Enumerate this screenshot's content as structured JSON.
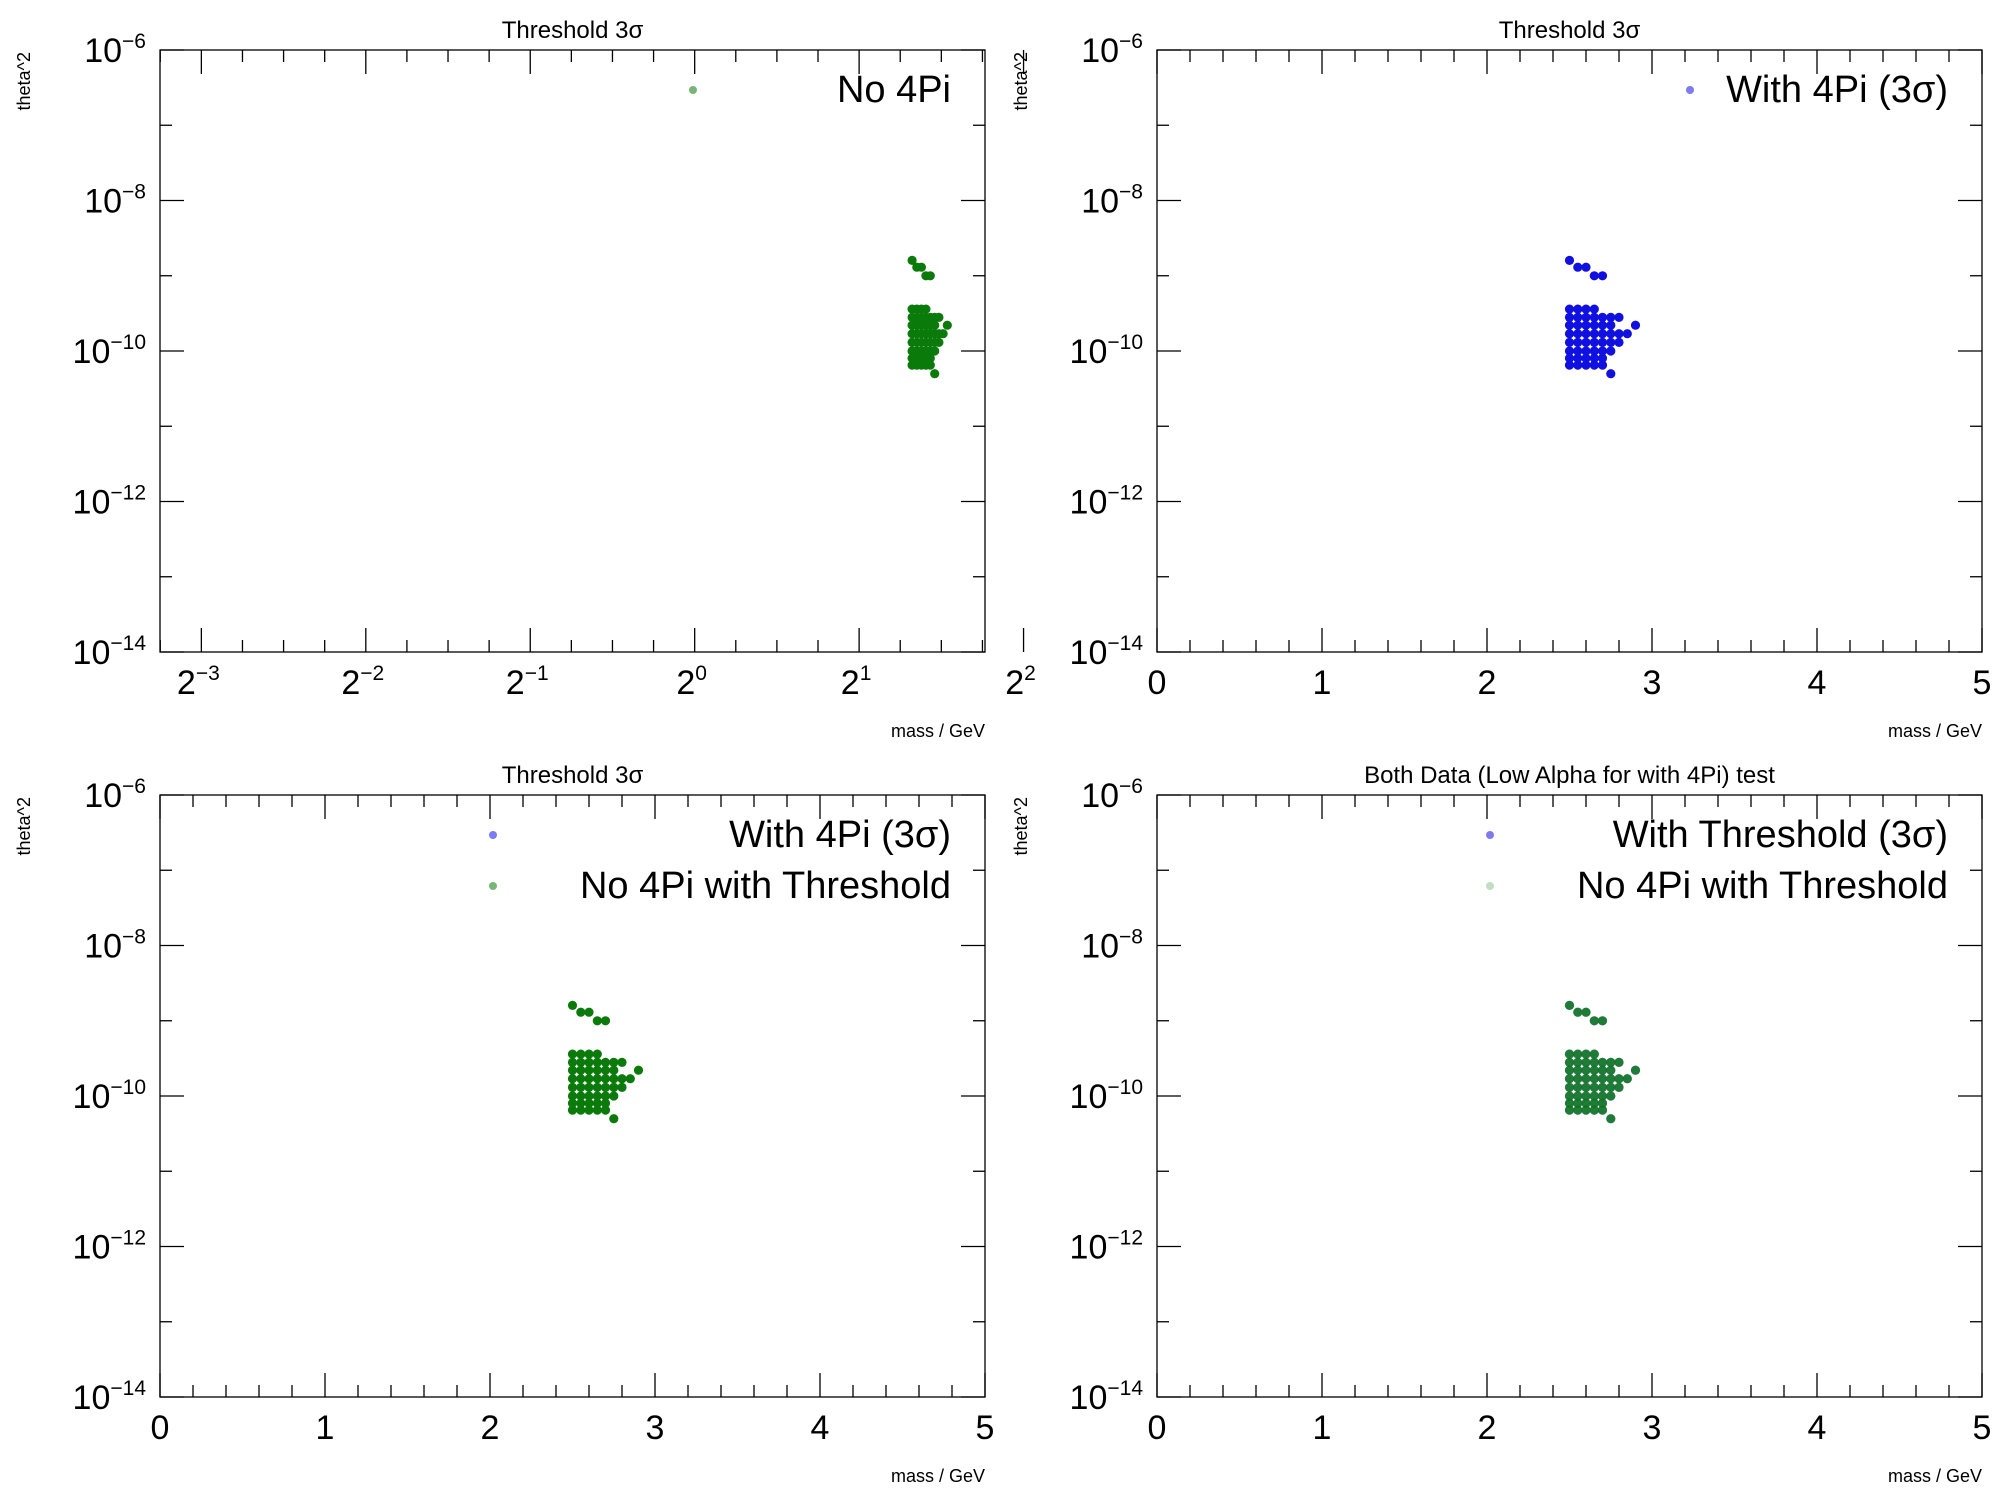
{
  "chart_data": [
    {
      "type": "scatter",
      "title": "Threshold 3σ",
      "xlabel": "mass / GeV",
      "ylabel": "theta^2",
      "xscale": "log2",
      "yscale": "log",
      "xlim": [
        0.105,
        3.4
      ],
      "ylim": [
        1e-14,
        1e-06
      ],
      "legend_position": "top-right",
      "series": [
        {
          "name": "No 4Pi",
          "color": "#0a7a0a",
          "opacity": 1.0,
          "legend_opacity": 0.55
        }
      ]
    },
    {
      "type": "scatter",
      "title": "Threshold 3σ",
      "xlabel": "mass / GeV",
      "ylabel": "theta^2",
      "xscale": "linear",
      "yscale": "log",
      "xlim": [
        0,
        5
      ],
      "ylim": [
        1e-14,
        1e-06
      ],
      "legend_position": "top-right",
      "series": [
        {
          "name": "With 4Pi (3σ)",
          "color": "#1010e0",
          "opacity": 1.0,
          "legend_opacity": 0.55
        }
      ]
    },
    {
      "type": "scatter",
      "title": "Threshold 3σ",
      "xlabel": "mass / GeV",
      "ylabel": "theta^2",
      "xscale": "linear",
      "yscale": "log",
      "xlim": [
        0,
        5
      ],
      "ylim": [
        1e-14,
        1e-06
      ],
      "legend_position": "top-right",
      "series": [
        {
          "name": "With 4Pi (3σ)",
          "color": "#1010e0",
          "opacity": 0.0,
          "legend_opacity": 0.55
        },
        {
          "name": "No 4Pi with Threshold",
          "color": "#0a7a0a",
          "opacity": 1.0,
          "legend_opacity": 0.55
        }
      ]
    },
    {
      "type": "scatter",
      "title": "Both Data (Low Alpha for with 4Pi) test",
      "xlabel": "mass / GeV",
      "ylabel": "theta^2",
      "xscale": "linear",
      "yscale": "log",
      "xlim": [
        0,
        5
      ],
      "ylim": [
        1e-14,
        1e-06
      ],
      "legend_position": "top-right",
      "series": [
        {
          "name": "With Threshold (3σ)",
          "color": "#1010e0",
          "opacity": 0.55,
          "legend_opacity": 0.55
        },
        {
          "name": "No 4Pi with Threshold",
          "color": "#0a7a0a",
          "opacity": 0.8,
          "legend_opacity": 0.25
        }
      ]
    }
  ],
  "shared_points": [
    [
      2.5,
      1.6e-09
    ],
    [
      2.55,
      1.3e-09
    ],
    [
      2.6,
      1.3e-09
    ],
    [
      2.65,
      1e-09
    ],
    [
      2.7,
      1e-09
    ],
    [
      2.5,
      3.6e-10
    ],
    [
      2.55,
      3.6e-10
    ],
    [
      2.6,
      3.6e-10
    ],
    [
      2.65,
      3.6e-10
    ],
    [
      2.5,
      2.8e-10
    ],
    [
      2.55,
      2.8e-10
    ],
    [
      2.6,
      2.8e-10
    ],
    [
      2.65,
      2.8e-10
    ],
    [
      2.7,
      2.8e-10
    ],
    [
      2.75,
      2.8e-10
    ],
    [
      2.8,
      2.8e-10
    ],
    [
      2.5,
      2.2e-10
    ],
    [
      2.55,
      2.2e-10
    ],
    [
      2.6,
      2.2e-10
    ],
    [
      2.65,
      2.2e-10
    ],
    [
      2.7,
      2.2e-10
    ],
    [
      2.75,
      2.2e-10
    ],
    [
      2.9,
      2.2e-10
    ],
    [
      2.5,
      1.7e-10
    ],
    [
      2.55,
      1.7e-10
    ],
    [
      2.6,
      1.7e-10
    ],
    [
      2.65,
      1.7e-10
    ],
    [
      2.7,
      1.7e-10
    ],
    [
      2.75,
      1.7e-10
    ],
    [
      2.8,
      1.7e-10
    ],
    [
      2.85,
      1.7e-10
    ],
    [
      2.5,
      1.3e-10
    ],
    [
      2.55,
      1.3e-10
    ],
    [
      2.6,
      1.3e-10
    ],
    [
      2.65,
      1.3e-10
    ],
    [
      2.7,
      1.3e-10
    ],
    [
      2.75,
      1.3e-10
    ],
    [
      2.8,
      1.3e-10
    ],
    [
      2.5,
      1e-10
    ],
    [
      2.55,
      1e-10
    ],
    [
      2.6,
      1e-10
    ],
    [
      2.65,
      1e-10
    ],
    [
      2.7,
      1e-10
    ],
    [
      2.75,
      1e-10
    ],
    [
      2.5,
      8e-11
    ],
    [
      2.55,
      8e-11
    ],
    [
      2.6,
      8e-11
    ],
    [
      2.65,
      8e-11
    ],
    [
      2.7,
      8e-11
    ],
    [
      2.5,
      6.5e-11
    ],
    [
      2.55,
      6.5e-11
    ],
    [
      2.6,
      6.5e-11
    ],
    [
      2.65,
      6.5e-11
    ],
    [
      2.7,
      6.5e-11
    ],
    [
      2.75,
      5e-11
    ]
  ]
}
